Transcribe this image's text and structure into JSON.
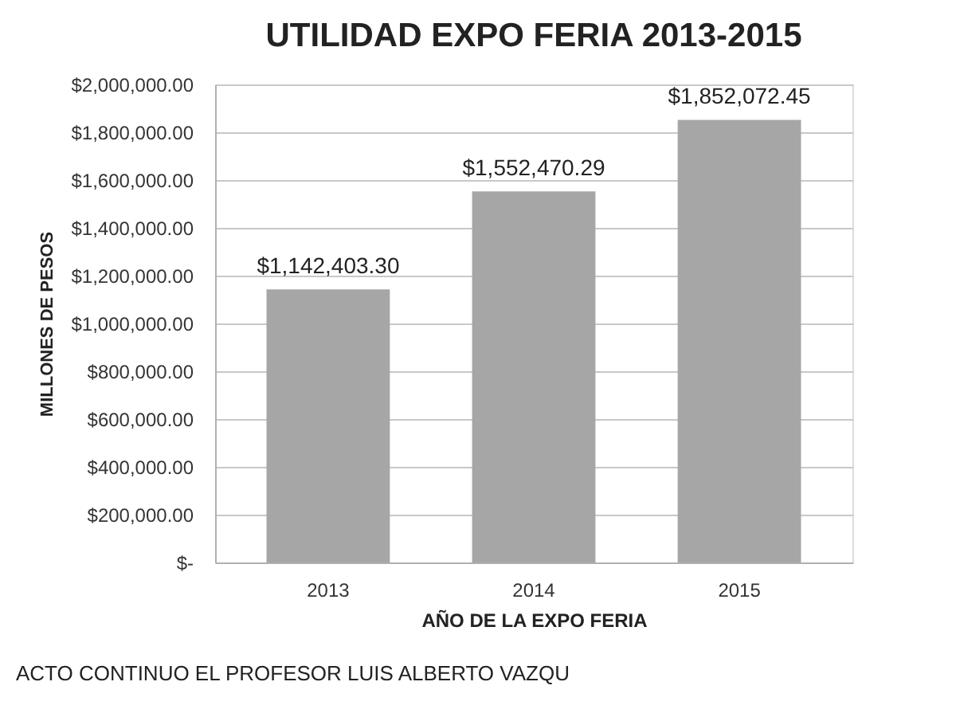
{
  "chart_data": {
    "type": "bar",
    "title": "UTILIDAD EXPO FERIA 2013-2015",
    "xlabel": "AÑO DE LA EXPO FERIA",
    "ylabel": "MILLONES DE PESOS",
    "categories": [
      "2013",
      "2014",
      "2015"
    ],
    "values": [
      1142403.3,
      1552470.29,
      1852072.45
    ],
    "value_labels": [
      "$1,142,403.30",
      "$1,552,470.29",
      "$1,852,072.45"
    ],
    "color": "#a6a6a6",
    "ylim": [
      0,
      2000000
    ],
    "yticks": [
      {
        "value": 0,
        "label": "$-"
      },
      {
        "value": 200000,
        "label": "$200,000.00"
      },
      {
        "value": 400000,
        "label": "$400,000.00"
      },
      {
        "value": 600000,
        "label": "$600,000.00"
      },
      {
        "value": 800000,
        "label": "$800,000.00"
      },
      {
        "value": 1000000,
        "label": "$1,000,000.00"
      },
      {
        "value": 1200000,
        "label": "$1,200,000.00"
      },
      {
        "value": 1400000,
        "label": "$1,400,000.00"
      },
      {
        "value": 1600000,
        "label": "$1,600,000.00"
      },
      {
        "value": 1800000,
        "label": "$1,800,000.00"
      },
      {
        "value": 2000000,
        "label": "$2,000,000.00"
      }
    ],
    "grid": "y",
    "annotations": [
      "ACTO CONTINUO EL PROFESOR LUIS ALBERTO VAZQU"
    ]
  }
}
